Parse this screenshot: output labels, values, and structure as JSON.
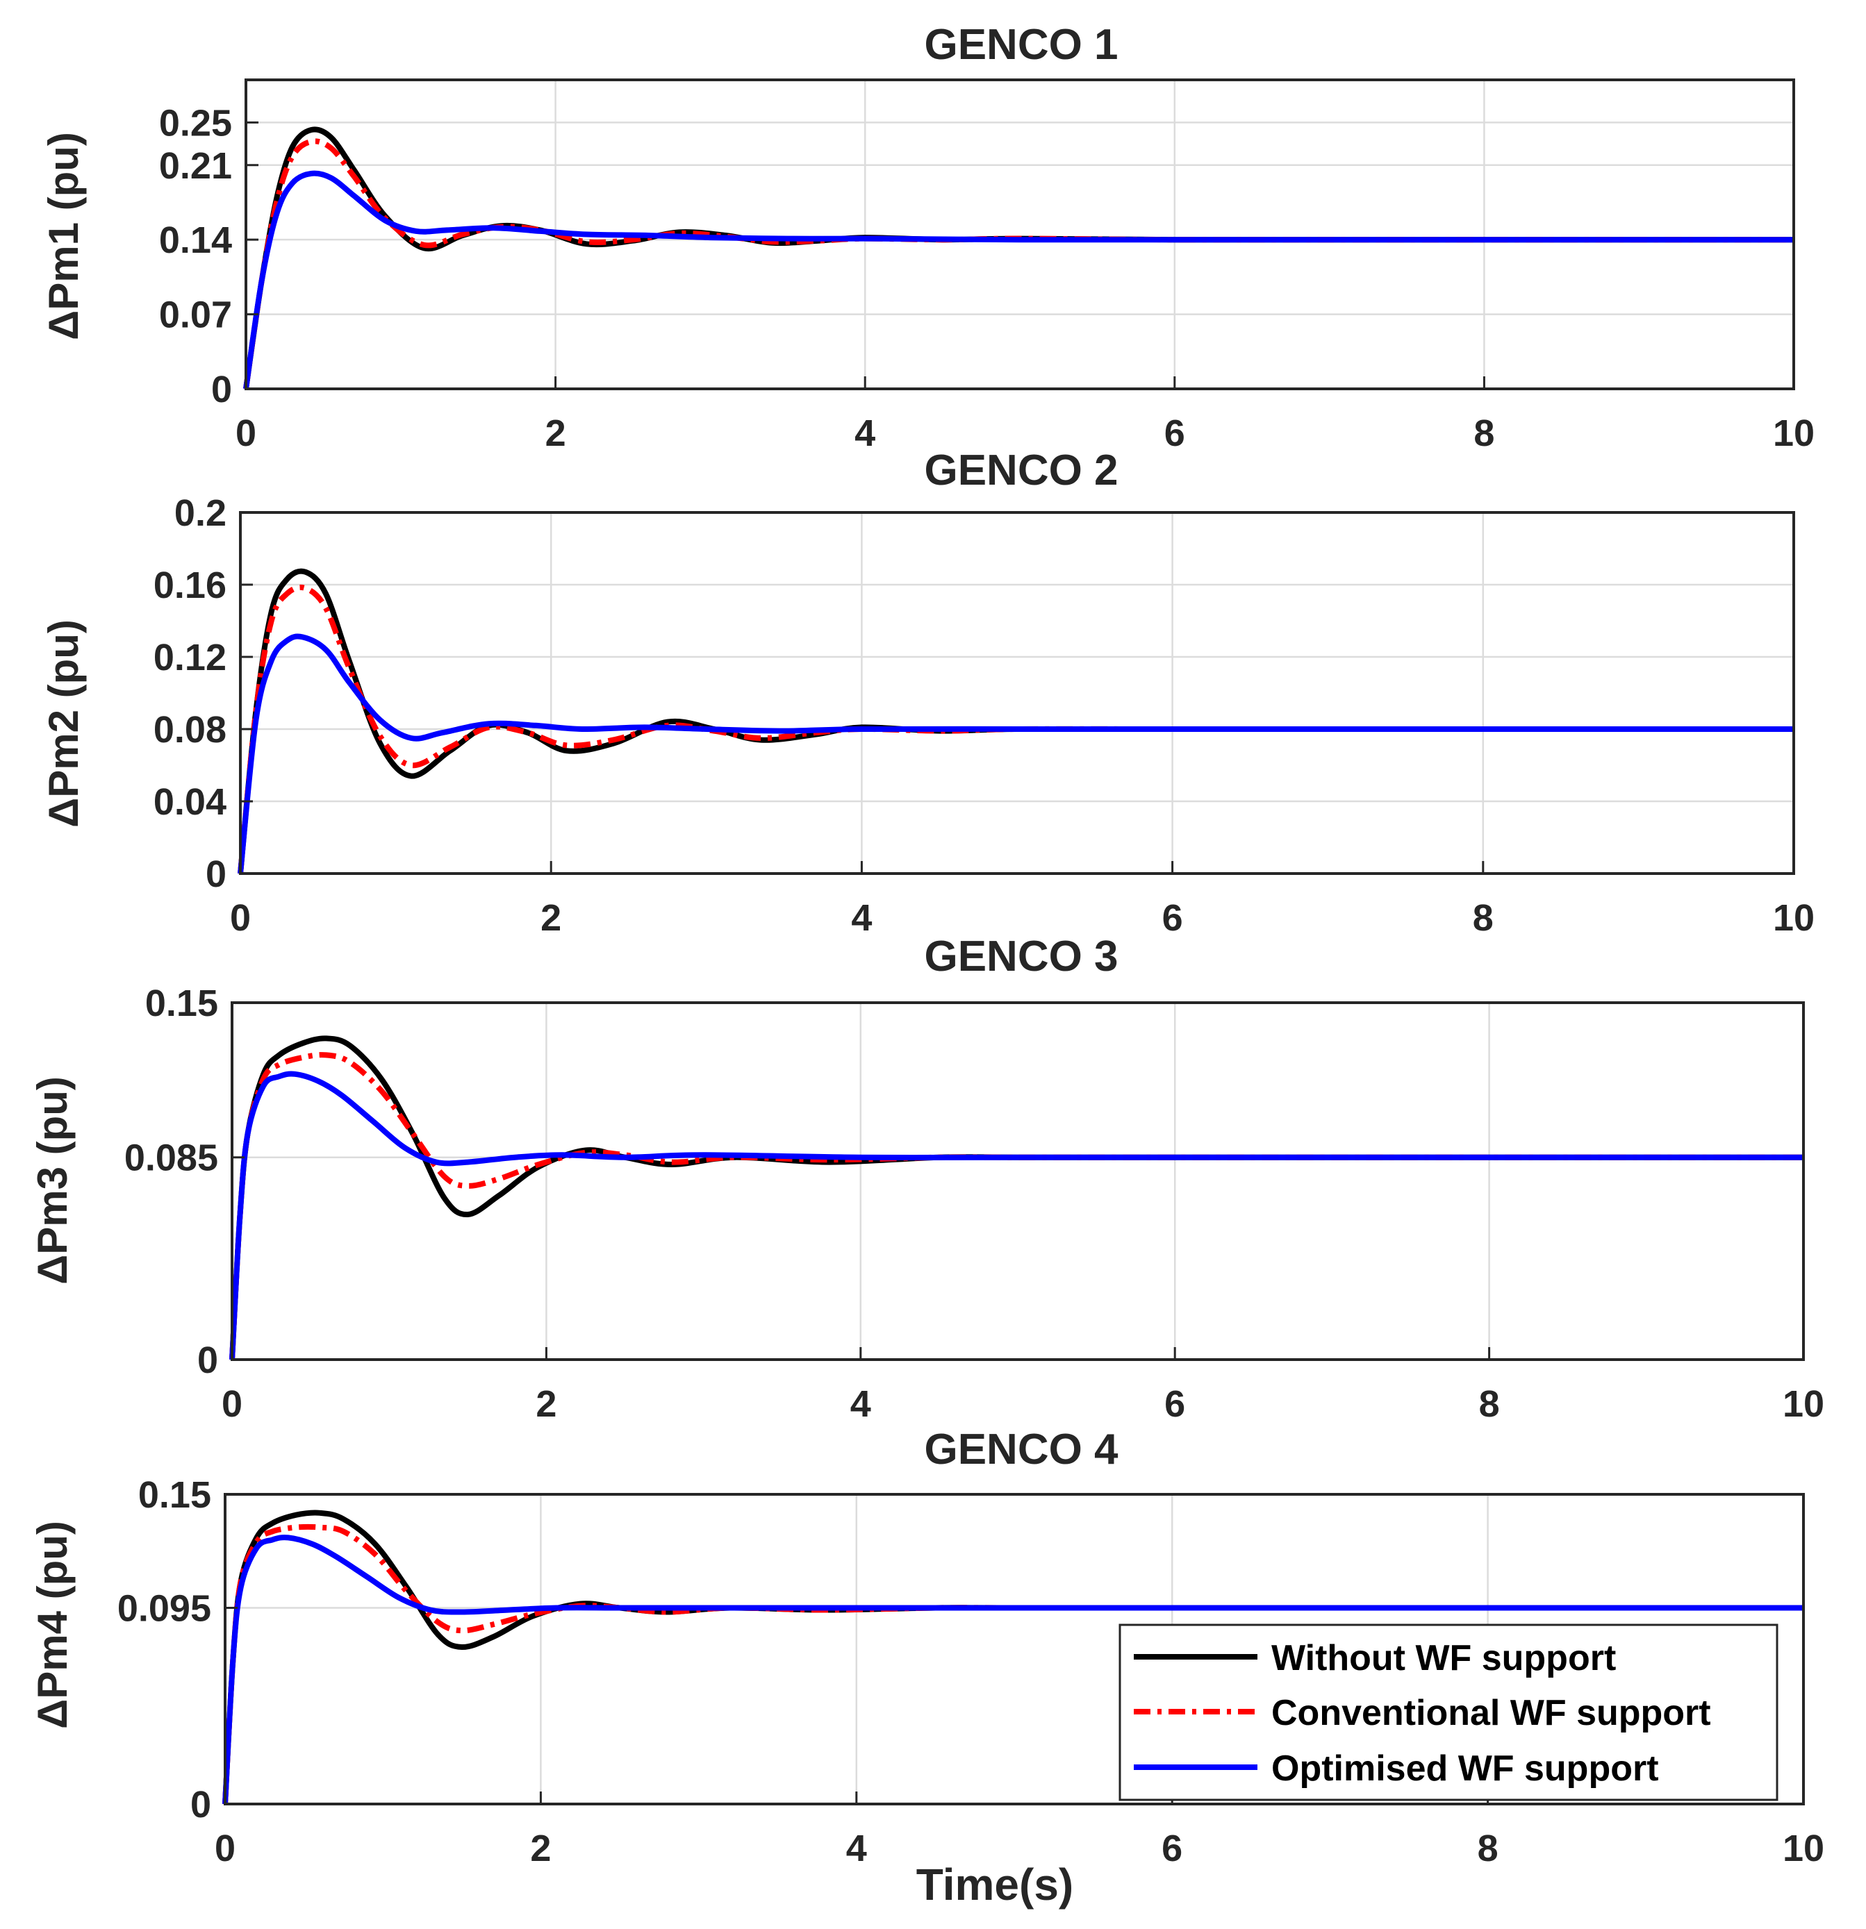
{
  "chart_data": {
    "type": "line",
    "xlabel": "Time(s)",
    "xlim": [
      0,
      10
    ],
    "xticks": [
      "0",
      "2",
      "4",
      "6",
      "8",
      "10"
    ],
    "colors": {
      "Without WF support": "#000000",
      "Conventional WF support": "#ff0000",
      "Optimised WF support": "#0000ff"
    },
    "legend": {
      "location": "bottom-right of GENCO 4 panel",
      "entries": [
        "Without WF support",
        "Conventional WF support",
        "Optimised WF support"
      ]
    },
    "panels": [
      {
        "title": "GENCO 1",
        "ylabel": "ΔPm1 (pu)",
        "ylim": [
          0,
          0.29
        ],
        "yticks": [
          "0",
          "0.07",
          "0.14",
          "0.21",
          "0.25"
        ],
        "final_value": 0.14,
        "series": [
          {
            "name": "Without WF support",
            "x": [
              0,
              0.1,
              0.2,
              0.3,
              0.42,
              0.55,
              0.7,
              0.9,
              1.15,
              1.4,
              1.65,
              1.9,
              2.2,
              2.5,
              2.8,
              3.1,
              3.4,
              3.7,
              4.0,
              4.5,
              5.0,
              6.0,
              8.0,
              10.0
            ],
            "y": [
              0,
              0.1,
              0.18,
              0.227,
              0.243,
              0.236,
              0.205,
              0.162,
              0.132,
              0.144,
              0.153,
              0.149,
              0.136,
              0.139,
              0.147,
              0.144,
              0.137,
              0.139,
              0.142,
              0.14,
              0.141,
              0.14,
              0.14,
              0.14
            ]
          },
          {
            "name": "Conventional WF support",
            "x": [
              0,
              0.1,
              0.2,
              0.3,
              0.42,
              0.55,
              0.7,
              0.9,
              1.15,
              1.4,
              1.65,
              1.9,
              2.2,
              2.5,
              2.8,
              3.1,
              3.4,
              3.7,
              4.0,
              4.5,
              5.0,
              6.0,
              8.0,
              10.0
            ],
            "y": [
              0,
              0.1,
              0.176,
              0.218,
              0.232,
              0.226,
              0.199,
              0.16,
              0.135,
              0.145,
              0.152,
              0.149,
              0.138,
              0.14,
              0.146,
              0.143,
              0.138,
              0.139,
              0.141,
              0.14,
              0.141,
              0.14,
              0.14,
              0.14
            ]
          },
          {
            "name": "Optimised WF support",
            "x": [
              0,
              0.1,
              0.2,
              0.3,
              0.42,
              0.55,
              0.7,
              0.9,
              1.1,
              1.3,
              1.6,
              1.9,
              2.2,
              2.6,
              3.0,
              3.5,
              4.0,
              5.0,
              6.0,
              8.0,
              10.0
            ],
            "y": [
              0,
              0.1,
              0.165,
              0.193,
              0.202,
              0.198,
              0.181,
              0.158,
              0.148,
              0.149,
              0.151,
              0.148,
              0.145,
              0.144,
              0.142,
              0.141,
              0.141,
              0.14,
              0.14,
              0.14,
              0.14
            ]
          }
        ]
      },
      {
        "title": "GENCO 2",
        "ylabel": "ΔPm2 (pu)",
        "ylim": [
          0,
          0.2
        ],
        "yticks": [
          "0",
          "0.04",
          "0.08",
          "0.12",
          "0.16",
          "0.2"
        ],
        "final_value": 0.08,
        "series": [
          {
            "name": "Without WF support",
            "x": [
              0,
              0.1,
              0.2,
              0.3,
              0.42,
              0.55,
              0.7,
              0.9,
              1.1,
              1.35,
              1.6,
              1.85,
              2.1,
              2.4,
              2.75,
              3.05,
              3.35,
              3.7,
              4.0,
              4.5,
              5.0,
              6.0,
              8.0,
              10.0
            ],
            "y": [
              0,
              0.09,
              0.145,
              0.163,
              0.167,
              0.155,
              0.118,
              0.072,
              0.054,
              0.068,
              0.082,
              0.078,
              0.068,
              0.072,
              0.084,
              0.08,
              0.074,
              0.077,
              0.081,
              0.079,
              0.08,
              0.08,
              0.08,
              0.08
            ]
          },
          {
            "name": "Conventional WF support",
            "x": [
              0,
              0.1,
              0.2,
              0.3,
              0.42,
              0.55,
              0.7,
              0.9,
              1.1,
              1.35,
              1.6,
              1.85,
              2.1,
              2.4,
              2.75,
              3.05,
              3.35,
              3.7,
              4.0,
              4.5,
              5.0,
              6.0,
              8.0,
              10.0
            ],
            "y": [
              0,
              0.09,
              0.14,
              0.155,
              0.158,
              0.147,
              0.114,
              0.076,
              0.06,
              0.07,
              0.081,
              0.078,
              0.071,
              0.074,
              0.082,
              0.079,
              0.075,
              0.078,
              0.08,
              0.079,
              0.08,
              0.08,
              0.08,
              0.08
            ]
          },
          {
            "name": "Optimised WF support",
            "x": [
              0,
              0.1,
              0.2,
              0.3,
              0.4,
              0.55,
              0.7,
              0.9,
              1.1,
              1.3,
              1.6,
              1.9,
              2.2,
              2.6,
              3.0,
              3.5,
              4.0,
              5.0,
              6.0,
              8.0,
              10.0
            ],
            "y": [
              0,
              0.085,
              0.118,
              0.129,
              0.131,
              0.124,
              0.106,
              0.085,
              0.075,
              0.078,
              0.083,
              0.082,
              0.08,
              0.081,
              0.08,
              0.079,
              0.08,
              0.08,
              0.08,
              0.08,
              0.08
            ]
          }
        ]
      },
      {
        "title": "GENCO 3",
        "ylabel": "ΔPm3 (pu)",
        "ylim": [
          0,
          0.15
        ],
        "yticks": [
          "0",
          "0.085",
          "0.15"
        ],
        "final_value": 0.085,
        "series": [
          {
            "name": "Without WF support",
            "x": [
              0,
              0.05,
              0.1,
              0.2,
              0.3,
              0.45,
              0.6,
              0.75,
              0.95,
              1.15,
              1.35,
              1.5,
              1.7,
              1.95,
              2.25,
              2.5,
              2.8,
              3.2,
              3.8,
              4.5,
              5.0,
              6.0,
              8.0,
              10.0
            ],
            "y": [
              0,
              0.06,
              0.095,
              0.12,
              0.128,
              0.133,
              0.135,
              0.132,
              0.118,
              0.095,
              0.068,
              0.061,
              0.069,
              0.081,
              0.088,
              0.085,
              0.082,
              0.085,
              0.083,
              0.085,
              0.085,
              0.085,
              0.085,
              0.085
            ]
          },
          {
            "name": "Conventional WF support",
            "x": [
              0,
              0.05,
              0.1,
              0.2,
              0.3,
              0.45,
              0.6,
              0.75,
              0.95,
              1.15,
              1.35,
              1.5,
              1.7,
              1.95,
              2.25,
              2.5,
              2.8,
              3.2,
              3.8,
              4.5,
              5.0,
              6.0,
              8.0,
              10.0
            ],
            "y": [
              0,
              0.06,
              0.095,
              0.118,
              0.124,
              0.127,
              0.128,
              0.125,
              0.113,
              0.095,
              0.077,
              0.073,
              0.076,
              0.082,
              0.087,
              0.086,
              0.083,
              0.085,
              0.084,
              0.085,
              0.085,
              0.085,
              0.085,
              0.085
            ]
          },
          {
            "name": "Optimised WF support",
            "x": [
              0,
              0.05,
              0.1,
              0.2,
              0.3,
              0.4,
              0.55,
              0.7,
              0.9,
              1.1,
              1.3,
              1.5,
              1.8,
              2.1,
              2.5,
              3.0,
              4.0,
              5.0,
              6.0,
              8.0,
              10.0
            ],
            "y": [
              0,
              0.06,
              0.095,
              0.115,
              0.119,
              0.12,
              0.117,
              0.111,
              0.1,
              0.089,
              0.083,
              0.083,
              0.085,
              0.086,
              0.085,
              0.086,
              0.085,
              0.085,
              0.085,
              0.085,
              0.085
            ]
          }
        ]
      },
      {
        "title": "GENCO 4",
        "ylabel": "ΔPm4 (pu)",
        "ylim": [
          0,
          0.15
        ],
        "yticks": [
          "0",
          "0.095",
          "0.15"
        ],
        "final_value": 0.095,
        "series": [
          {
            "name": "Without WF support",
            "x": [
              0,
              0.05,
              0.1,
              0.2,
              0.3,
              0.45,
              0.6,
              0.75,
              0.95,
              1.15,
              1.35,
              1.5,
              1.7,
              1.95,
              2.25,
              2.5,
              2.8,
              3.2,
              3.8,
              4.5,
              5.0,
              6.0,
              8.0,
              10.0
            ],
            "y": [
              0,
              0.07,
              0.108,
              0.129,
              0.136,
              0.14,
              0.141,
              0.138,
              0.126,
              0.105,
              0.082,
              0.076,
              0.081,
              0.091,
              0.097,
              0.095,
              0.093,
              0.095,
              0.094,
              0.095,
              0.095,
              0.095,
              0.095,
              0.095
            ]
          },
          {
            "name": "Conventional WF support",
            "x": [
              0,
              0.05,
              0.1,
              0.2,
              0.3,
              0.45,
              0.6,
              0.75,
              0.95,
              1.15,
              1.35,
              1.5,
              1.7,
              1.95,
              2.25,
              2.5,
              2.8,
              3.2,
              3.8,
              4.5,
              5.0,
              6.0,
              8.0,
              10.0
            ],
            "y": [
              0,
              0.07,
              0.108,
              0.127,
              0.132,
              0.134,
              0.134,
              0.132,
              0.121,
              0.103,
              0.088,
              0.084,
              0.087,
              0.092,
              0.096,
              0.095,
              0.093,
              0.095,
              0.094,
              0.095,
              0.095,
              0.095,
              0.095,
              0.095
            ]
          },
          {
            "name": "Optimised WF support",
            "x": [
              0,
              0.05,
              0.1,
              0.2,
              0.3,
              0.4,
              0.55,
              0.7,
              0.9,
              1.1,
              1.3,
              1.5,
              1.8,
              2.1,
              2.5,
              3.0,
              4.0,
              5.0,
              6.0,
              8.0,
              10.0
            ],
            "y": [
              0,
              0.07,
              0.105,
              0.124,
              0.128,
              0.129,
              0.126,
              0.12,
              0.11,
              0.1,
              0.094,
              0.093,
              0.094,
              0.095,
              0.095,
              0.095,
              0.095,
              0.095,
              0.095,
              0.095,
              0.095
            ]
          }
        ]
      }
    ]
  }
}
